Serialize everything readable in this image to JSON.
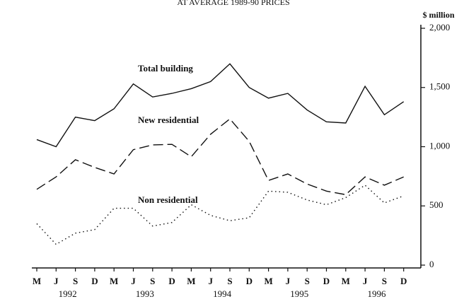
{
  "chart_data": {
    "type": "line",
    "title": "AT AVERAGE 1989-90 PRICES",
    "y_label": "$ million",
    "categories": [
      "M",
      "J",
      "S",
      "D",
      "M",
      "J",
      "S",
      "D",
      "M",
      "J",
      "S",
      "D",
      "M",
      "J",
      "S",
      "D",
      "M",
      "J",
      "S",
      "D"
    ],
    "years": [
      "1992",
      "1993",
      "1994",
      "1995",
      "1996"
    ],
    "series": [
      {
        "name": "Total building",
        "color": "#111111",
        "dash": "solid",
        "values": [
          1060,
          1000,
          1250,
          1220,
          1320,
          1530,
          1420,
          1450,
          1490,
          1550,
          1700,
          1500,
          1410,
          1450,
          1310,
          1210,
          1200,
          1510,
          1270,
          1380
        ]
      },
      {
        "name": "New residential",
        "color": "#111111",
        "dash": "dashed",
        "values": [
          640,
          745,
          890,
          825,
          770,
          975,
          1015,
          1020,
          915,
          1105,
          1235,
          1045,
          715,
          770,
          685,
          625,
          595,
          745,
          675,
          745
        ]
      },
      {
        "name": "Non residential",
        "color": "#111111",
        "dash": "dotted",
        "values": [
          350,
          175,
          270,
          300,
          480,
          480,
          330,
          360,
          510,
          420,
          375,
          400,
          625,
          615,
          550,
          510,
          570,
          675,
          525,
          585
        ]
      }
    ],
    "ylim": [
      0,
      2000
    ],
    "yticks": [
      0,
      {
        "value": 500,
        "label": "500"
      },
      {
        "value": 1000,
        "label": "1,000"
      },
      {
        "value": 1500,
        "label": "1,500"
      },
      {
        "value": 2000,
        "label": "2,000"
      }
    ]
  }
}
